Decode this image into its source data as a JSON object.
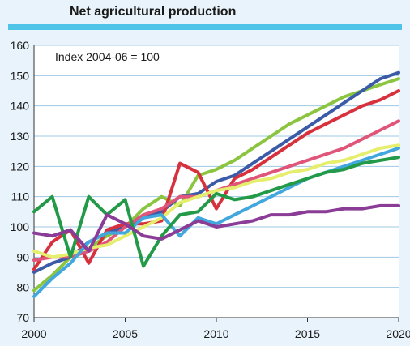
{
  "chart_data": {
    "type": "line",
    "title": "Net agricultural production",
    "annotation": "Index 2004-06 = 100",
    "xlabel": "",
    "ylabel": "",
    "xlim": [
      2000,
      2020
    ],
    "ylim": [
      70,
      160
    ],
    "x_ticks": [
      2000,
      2005,
      2010,
      2015,
      2020
    ],
    "y_ticks": [
      70,
      80,
      90,
      100,
      110,
      120,
      130,
      140,
      150,
      160
    ],
    "grid": true,
    "x": [
      2000,
      2001,
      2002,
      2003,
      2004,
      2005,
      2006,
      2007,
      2008,
      2009,
      2010,
      2011,
      2012,
      2013,
      2014,
      2015,
      2016,
      2017,
      2018,
      2019,
      2020
    ],
    "series": [
      {
        "color": "#8bc53f",
        "values": [
          79,
          84,
          90,
          93,
          97,
          100,
          106,
          110,
          107,
          117,
          119,
          122,
          126,
          130,
          134,
          137,
          140,
          143,
          145,
          147,
          149
        ]
      },
      {
        "color": "#3b5ba8",
        "values": [
          85,
          88,
          90,
          95,
          98,
          100,
          103,
          105,
          110,
          111,
          115,
          117,
          121,
          125,
          129,
          133,
          137,
          141,
          145,
          149,
          151
        ]
      },
      {
        "color": "#d8313e",
        "values": [
          86,
          95,
          99,
          88,
          99,
          101,
          101,
          102,
          121,
          118,
          106,
          116,
          119,
          123,
          127,
          131,
          134,
          137,
          140,
          142,
          145
        ]
      },
      {
        "color": "#e0567a",
        "values": [
          89,
          90,
          90,
          92,
          95,
          100,
          104,
          106,
          110,
          110,
          112,
          114,
          116,
          118,
          120,
          122,
          124,
          126,
          129,
          132,
          135
        ]
      },
      {
        "color": "#e6ee6e",
        "values": [
          92,
          90,
          91,
          93,
          94,
          97,
          100,
          103,
          108,
          110,
          112,
          113,
          115,
          116,
          118,
          119,
          121,
          122,
          124,
          126,
          127
        ]
      },
      {
        "color": "#41a7dd",
        "values": [
          77,
          83,
          88,
          95,
          98,
          98,
          103,
          104,
          97,
          103,
          101,
          104,
          107,
          110,
          113,
          116,
          118,
          120,
          122,
          124,
          126
        ]
      },
      {
        "color": "#229a48",
        "values": [
          105,
          110,
          90,
          110,
          104,
          109,
          87,
          97,
          104,
          105,
          111,
          109,
          110,
          112,
          114,
          116,
          118,
          119,
          121,
          122,
          123
        ]
      },
      {
        "color": "#8a3c96",
        "values": [
          98,
          97,
          99,
          92,
          104,
          101,
          97,
          96,
          99,
          102,
          100,
          101,
          102,
          104,
          104,
          105,
          105,
          106,
          106,
          107,
          107
        ]
      }
    ]
  }
}
